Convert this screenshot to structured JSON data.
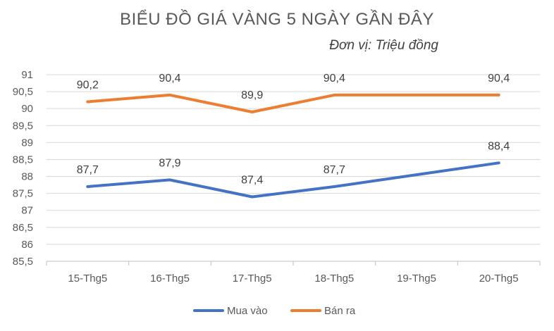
{
  "chart_data": {
    "type": "line",
    "title": "BIỂU ĐỒ GIÁ VÀNG 5 NGÀY GẦN ĐÂY",
    "subtitle": "Đơn vị: Triệu đồng",
    "categories": [
      "15-Thg5",
      "16-Thg5",
      "17-Thg5",
      "18-Thg5",
      "19-Thg5",
      "20-Thg5"
    ],
    "series": [
      {
        "name": "Mua vào",
        "color": "#4472C4",
        "values": [
          87.7,
          87.9,
          87.4,
          87.7,
          88.05,
          88.4
        ],
        "labels": [
          "87,7",
          "87,9",
          "87,4",
          "87,7",
          "",
          "88,4"
        ]
      },
      {
        "name": "Bán ra",
        "color": "#ED7D31",
        "values": [
          90.2,
          90.4,
          89.9,
          90.4,
          90.4,
          90.4
        ],
        "labels": [
          "90,2",
          "90,4",
          "89,9",
          "90,4",
          "",
          "90,4"
        ]
      }
    ],
    "ylim": [
      85.5,
      91
    ],
    "yticks": [
      "85,5",
      "86",
      "86,5",
      "87",
      "87,5",
      "88",
      "88,5",
      "89",
      "89,5",
      "90",
      "90,5",
      "91"
    ],
    "grid": true,
    "legend": "bottom"
  }
}
